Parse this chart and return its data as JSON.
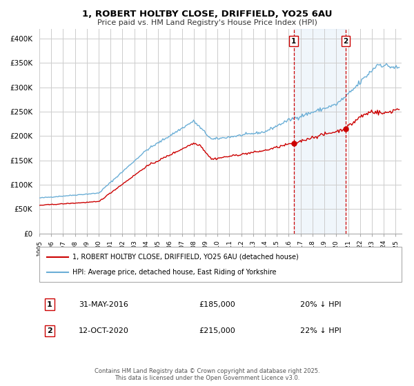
{
  "title": "1, ROBERT HOLTBY CLOSE, DRIFFIELD, YO25 6AU",
  "subtitle": "Price paid vs. HM Land Registry's House Price Index (HPI)",
  "legend_line1": "1, ROBERT HOLTBY CLOSE, DRIFFIELD, YO25 6AU (detached house)",
  "legend_line2": "HPI: Average price, detached house, East Riding of Yorkshire",
  "marker1_date": 2016.42,
  "marker1_label": "1",
  "marker1_value": 185000,
  "marker1_text": "31-MAY-2016",
  "marker1_price": "£185,000",
  "marker1_hpi": "20% ↓ HPI",
  "marker2_date": 2020.79,
  "marker2_label": "2",
  "marker2_value": 215000,
  "marker2_text": "12-OCT-2020",
  "marker2_price": "£215,000",
  "marker2_hpi": "22% ↓ HPI",
  "ylim": [
    0,
    420000
  ],
  "xlim_start": 1995.0,
  "xlim_end": 2025.5,
  "hpi_color": "#6aaed6",
  "price_color": "#cc0000",
  "bg_color": "#ffffff",
  "grid_color": "#cccccc",
  "shade_color": "#d0e4f5",
  "footer": "Contains HM Land Registry data © Crown copyright and database right 2025.\nThis data is licensed under the Open Government Licence v3.0.",
  "yticks": [
    0,
    50000,
    100000,
    150000,
    200000,
    250000,
    300000,
    350000,
    400000
  ],
  "ytick_labels": [
    "£0",
    "£50K",
    "£100K",
    "£150K",
    "£200K",
    "£250K",
    "£300K",
    "£350K",
    "£400K"
  ]
}
